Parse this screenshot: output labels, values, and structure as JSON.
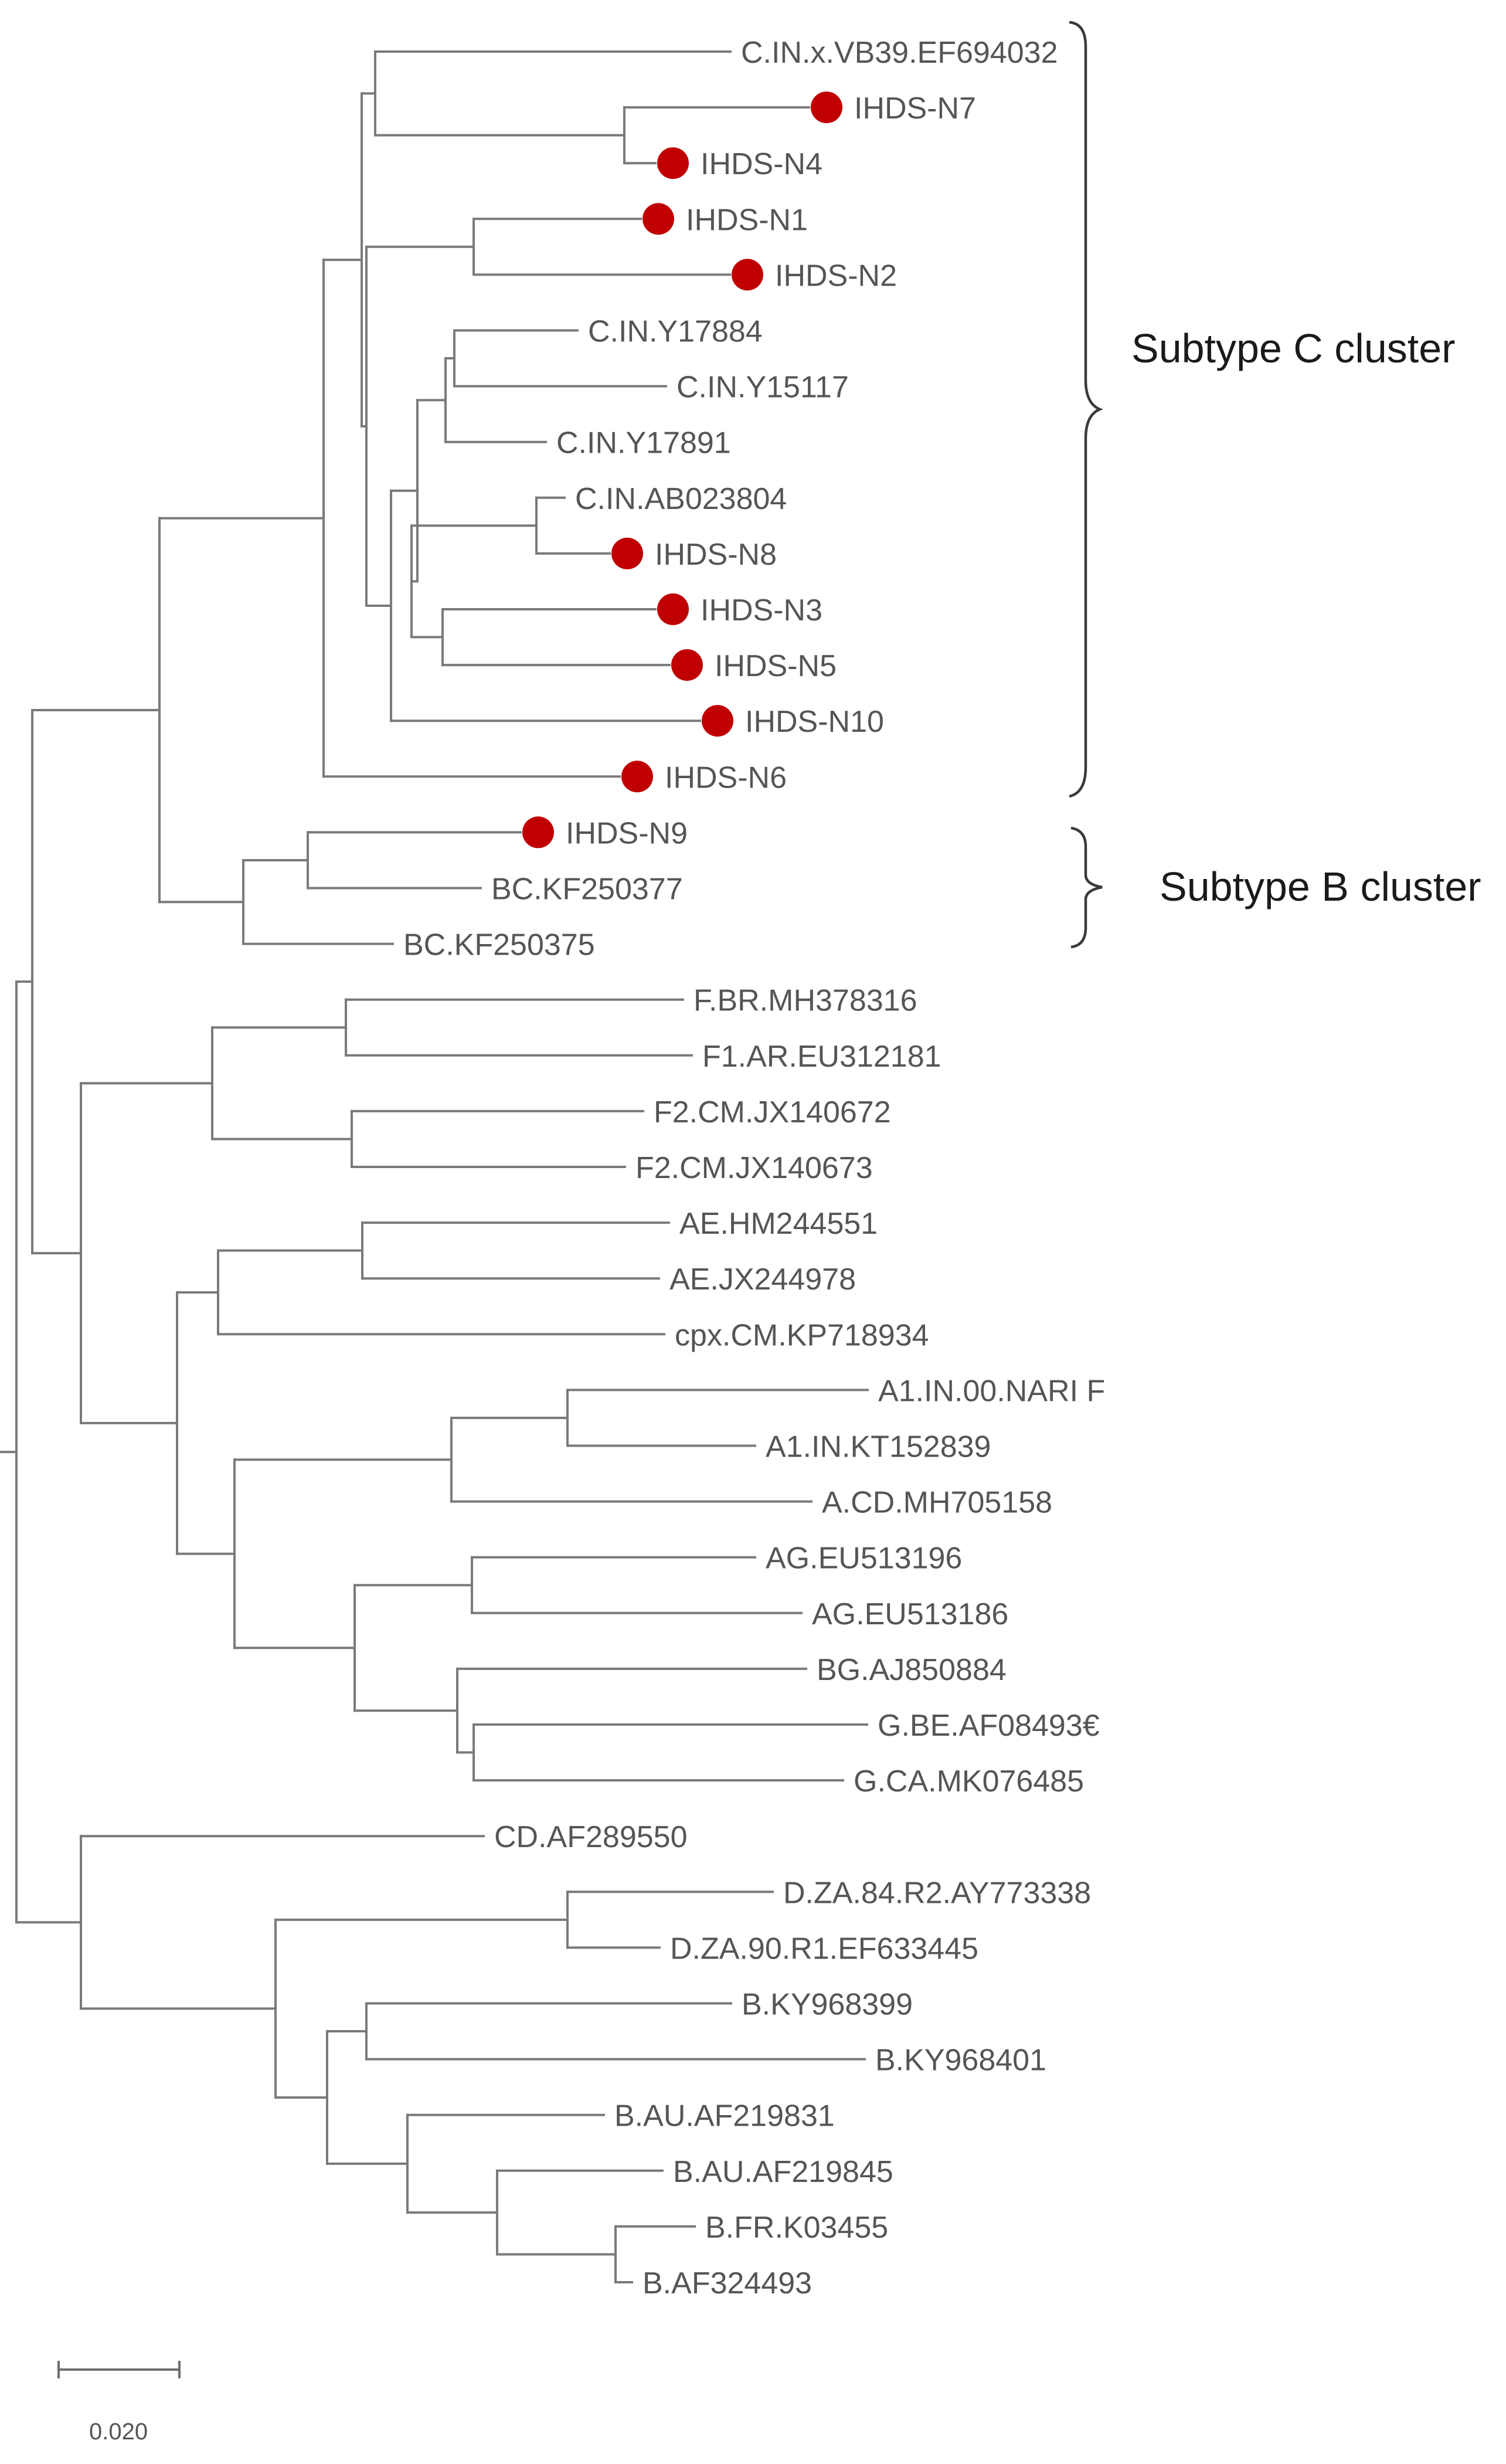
{
  "figure": {
    "type": "phylogenetic tree",
    "marker_color": "#c00000",
    "leaves": [
      {
        "label": "C.IN.x.VB39.EF694032",
        "marked": false
      },
      {
        "label": "IHDS-N7",
        "marked": true
      },
      {
        "label": "IHDS-N4",
        "marked": true
      },
      {
        "label": "IHDS-N1",
        "marked": true
      },
      {
        "label": "IHDS-N2",
        "marked": true
      },
      {
        "label": "C.IN.Y17884",
        "marked": false
      },
      {
        "label": "C.IN.Y15117",
        "marked": false
      },
      {
        "label": "C.IN.Y17891",
        "marked": false
      },
      {
        "label": "C.IN.AB023804",
        "marked": false
      },
      {
        "label": "IHDS-N8",
        "marked": true
      },
      {
        "label": "IHDS-N3",
        "marked": true
      },
      {
        "label": "IHDS-N5",
        "marked": true
      },
      {
        "label": "IHDS-N10",
        "marked": true
      },
      {
        "label": "IHDS-N6",
        "marked": true
      },
      {
        "label": "IHDS-N9",
        "marked": true
      },
      {
        "label": "BC.KF250377",
        "marked": false
      },
      {
        "label": "BC.KF250375",
        "marked": false
      },
      {
        "label": "F.BR.MH378316",
        "marked": false
      },
      {
        "label": "F1.AR.EU312181",
        "marked": false
      },
      {
        "label": "F2.CM.JX140672",
        "marked": false
      },
      {
        "label": "F2.CM.JX140673",
        "marked": false
      },
      {
        "label": "AE.HM244551",
        "marked": false
      },
      {
        "label": "AE.JX244978",
        "marked": false
      },
      {
        "label": "cpx.CM.KP718934",
        "marked": false
      },
      {
        "label": "A1.IN.00.NARI F",
        "marked": false
      },
      {
        "label": "A1.IN.KT152839",
        "marked": false
      },
      {
        "label": "A.CD.MH705158",
        "marked": false
      },
      {
        "label": "AG.EU513196",
        "marked": false
      },
      {
        "label": "AG.EU513186",
        "marked": false
      },
      {
        "label": "BG.AJ850884",
        "marked": false
      },
      {
        "label": "G.BE.AF08493€",
        "marked": false
      },
      {
        "label": "G.CA.MK076485",
        "marked": false
      },
      {
        "label": "CD.AF289550",
        "marked": false
      },
      {
        "label": "D.ZA.84.R2.AY773338",
        "marked": false
      },
      {
        "label": "D.ZA.90.R1.EF633445",
        "marked": false
      },
      {
        "label": "B.KY968399",
        "marked": false
      },
      {
        "label": "B.KY968401",
        "marked": false
      },
      {
        "label": "B.AU.AF219831",
        "marked": false
      },
      {
        "label": "B.AU.AF219845",
        "marked": false
      },
      {
        "label": "B.FR.K03455",
        "marked": false
      },
      {
        "label": "B.AF324493",
        "marked": false
      }
    ],
    "clusters": [
      {
        "label": "Subtype C cluster"
      },
      {
        "label": "Subtype B cluster"
      }
    ],
    "scale_bar": {
      "label": "0.020"
    }
  }
}
